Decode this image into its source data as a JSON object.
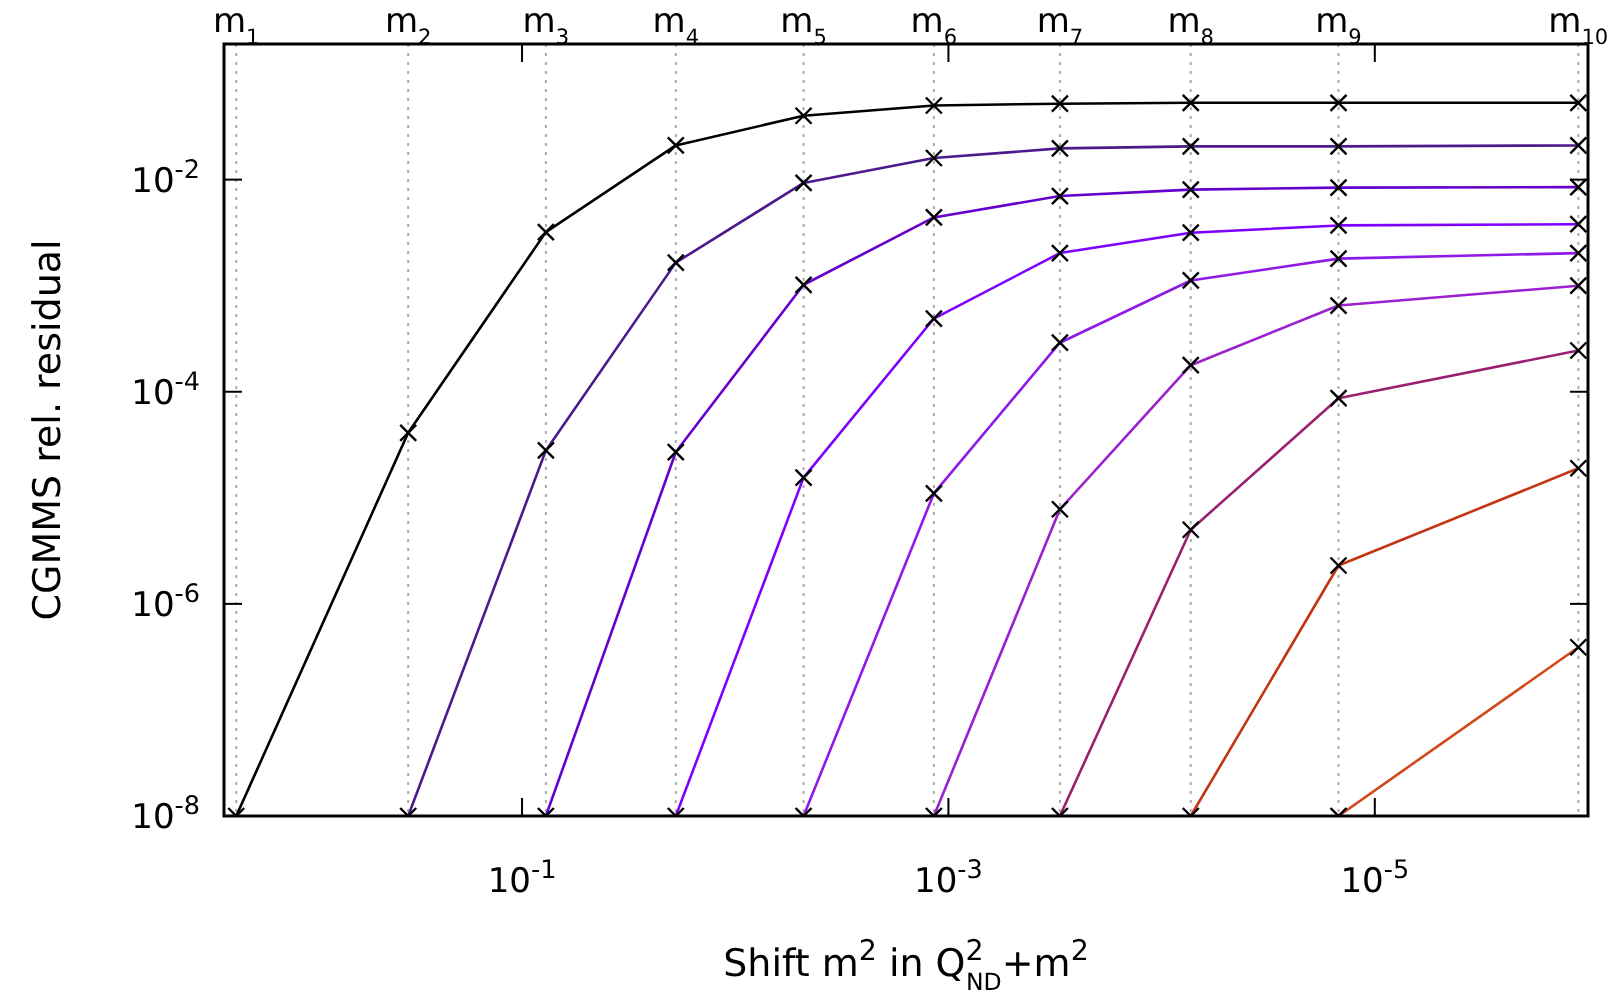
{
  "chart_data": {
    "type": "line",
    "xlabel": "Shift m$^{2}$ in Q$^{2}$$_{ND}$+m$^{2}$",
    "ylabel": "CGMMS rel. residual",
    "log": "xy",
    "xlim": [
      2.5,
      1e-06
    ],
    "ylim": [
      1e-08,
      0.19
    ],
    "xticks": [
      {
        "value": 0.1,
        "label": "10$^{-1}$"
      },
      {
        "value": 0.001,
        "label": "10$^{-3}$"
      },
      {
        "value": 1e-05,
        "label": "10$^{-5}$"
      }
    ],
    "yticks": [
      {
        "value": 1e-08,
        "label": "10$^{-8}$"
      },
      {
        "value": 1e-06,
        "label": "10$^{-6}$"
      },
      {
        "value": 0.0001,
        "label": "10$^{-4}$"
      },
      {
        "value": 0.01,
        "label": "10$^{-2}$"
      }
    ],
    "marker": "cross",
    "line_style": "solid",
    "ref_lines": [
      {
        "axis": "x",
        "value": 2.19,
        "label": "m$_{1}$",
        "line_style": "dotted",
        "color": "#aaaaaa"
      },
      {
        "axis": "x",
        "value": 0.342,
        "label": "m$_{2}$",
        "line_style": "dotted",
        "color": "#aaaaaa"
      },
      {
        "axis": "x",
        "value": 0.0773,
        "label": "m$_{3}$",
        "line_style": "dotted",
        "color": "#aaaaaa"
      },
      {
        "axis": "x",
        "value": 0.019,
        "label": "m$_{4}$",
        "line_style": "dotted",
        "color": "#aaaaaa"
      },
      {
        "axis": "x",
        "value": 0.00478,
        "label": "m$_{5}$",
        "line_style": "dotted",
        "color": "#aaaaaa"
      },
      {
        "axis": "x",
        "value": 0.00117,
        "label": "m$_{6}$",
        "line_style": "dotted",
        "color": "#aaaaaa"
      },
      {
        "axis": "x",
        "value": 0.0003,
        "label": "m$_{7}$",
        "line_style": "dotted",
        "color": "#aaaaaa"
      },
      {
        "axis": "x",
        "value": 7.3e-05,
        "label": "m$_{8}$",
        "line_style": "dotted",
        "color": "#aaaaaa"
      },
      {
        "axis": "x",
        "value": 1.48e-05,
        "label": "m$_{9}$",
        "line_style": "dotted",
        "color": "#aaaaaa"
      },
      {
        "axis": "x",
        "value": 1.11e-06,
        "label": "m$_{10}$",
        "line_style": "dotted",
        "color": "#aaaaaa"
      }
    ],
    "series": [
      {
        "color": "#000000",
        "x": [
          2.19,
          0.342,
          0.0773,
          0.019,
          0.00478,
          0.00117,
          0.0003,
          7.3e-05,
          1.48e-05,
          1.11e-06
        ],
        "values": [
          1e-08,
          4.1e-05,
          0.0032,
          0.021,
          0.04,
          0.05,
          0.052,
          0.053,
          0.053,
          0.053
        ]
      },
      {
        "color": "#4c1a8c",
        "x": [
          0.342,
          0.0773,
          0.019,
          0.00478,
          0.00117,
          0.0003,
          7.3e-05,
          1.48e-05,
          1.11e-06
        ],
        "values": [
          1e-08,
          2.8e-05,
          0.00165,
          0.0093,
          0.016,
          0.0197,
          0.0206,
          0.0206,
          0.021
        ]
      },
      {
        "color": "#6600cc",
        "x": [
          0.0773,
          0.019,
          0.00478,
          0.00117,
          0.0003,
          7.3e-05,
          1.48e-05,
          1.11e-06
        ],
        "values": [
          1e-08,
          2.7e-05,
          0.00102,
          0.0044,
          0.007,
          0.00805,
          0.0084,
          0.0085
        ]
      },
      {
        "color": "#7f00ff",
        "x": [
          0.019,
          0.00478,
          0.00117,
          0.0003,
          7.3e-05,
          1.48e-05,
          1.11e-06
        ],
        "values": [
          1e-08,
          1.55e-05,
          0.00049,
          0.00203,
          0.00316,
          0.0037,
          0.0038
        ]
      },
      {
        "color": "#8f1ae8",
        "x": [
          0.00478,
          0.00117,
          0.0003,
          7.3e-05,
          1.48e-05,
          1.11e-06
        ],
        "values": [
          1e-08,
          1.1e-05,
          0.00029,
          0.00112,
          0.0018,
          0.00203
        ]
      },
      {
        "color": "#9a20d0",
        "x": [
          0.00117,
          0.0003,
          7.3e-05,
          1.48e-05,
          1.11e-06
        ],
        "values": [
          1e-08,
          7.8e-06,
          0.000178,
          0.00065,
          0.001
        ]
      },
      {
        "color": "#9a2070",
        "x": [
          0.0003,
          7.3e-05,
          1.48e-05,
          1.11e-06
        ],
        "values": [
          1e-08,
          5e-06,
          8.7e-05,
          0.000245
        ]
      },
      {
        "color": "#c33512",
        "x": [
          7.3e-05,
          1.48e-05,
          1.11e-06
        ],
        "values": [
          1e-08,
          2.3e-06,
          1.9e-05
        ]
      },
      {
        "color": "#d2481a",
        "x": [
          1.48e-05,
          1.11e-06
        ],
        "values": [
          1e-08,
          3.9e-07
        ]
      }
    ]
  }
}
